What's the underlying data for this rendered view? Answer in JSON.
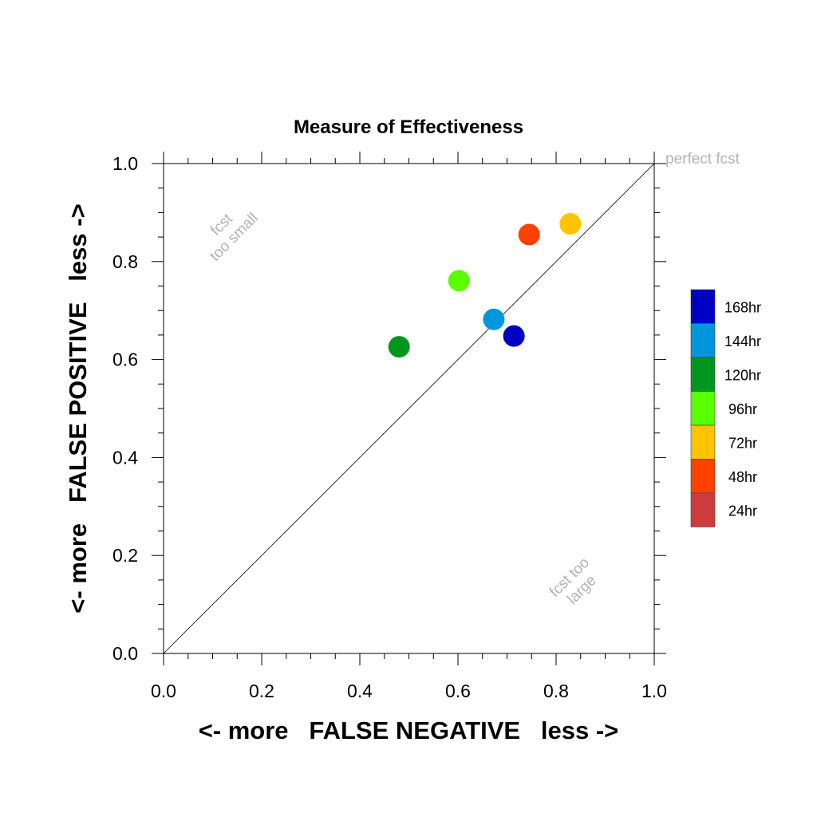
{
  "chart_data": {
    "type": "scatter",
    "title": "Measure of Effectiveness",
    "xlabel": "<- more   FALSE NEGATIVE   less ->",
    "ylabel": "<- more   FALSE POSITIVE   less ->",
    "xlim": [
      0.0,
      1.0
    ],
    "ylim": [
      0.0,
      1.0
    ],
    "xticks": [
      "0.0",
      "0.2",
      "0.4",
      "0.6",
      "0.8",
      "1.0"
    ],
    "yticks": [
      "0.0",
      "0.2",
      "0.4",
      "0.6",
      "0.8",
      "1.0"
    ],
    "grid": false,
    "diagonal": true,
    "annotations": {
      "perfect": "perfect fcst",
      "too_small": [
        "fcst",
        "too small"
      ],
      "too_large": [
        "fcst too",
        "large"
      ]
    },
    "legend_position": "right",
    "legend": [
      {
        "label": "168hr",
        "color": "#0000c4"
      },
      {
        "label": "144hr",
        "color": "#0096dc"
      },
      {
        "label": "120hr",
        "color": "#00961e"
      },
      {
        "label": "96hr",
        "color": "#5aff00"
      },
      {
        "label": "72hr",
        "color": "#ffc300"
      },
      {
        "label": "48hr",
        "color": "#ff4100"
      },
      {
        "label": "24hr",
        "color": "#cd3c3c"
      }
    ],
    "points": [
      {
        "label": "168hr",
        "x": 0.714,
        "y": 0.648,
        "color": "#0000c4"
      },
      {
        "label": "144hr",
        "x": 0.673,
        "y": 0.682,
        "color": "#0096dc"
      },
      {
        "label": "120hr",
        "x": 0.48,
        "y": 0.626,
        "color": "#00961e"
      },
      {
        "label": "96hr",
        "x": 0.602,
        "y": 0.761,
        "color": "#5aff00"
      },
      {
        "label": "72hr",
        "x": 0.829,
        "y": 0.877,
        "color": "#ffc300"
      },
      {
        "label": "48hr",
        "x": 0.745,
        "y": 0.855,
        "color": "#ff4100"
      }
    ]
  }
}
